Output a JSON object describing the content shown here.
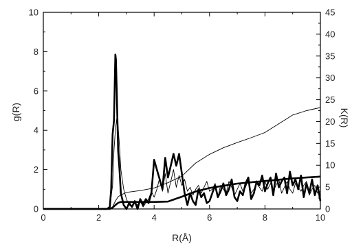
{
  "chart_data": {
    "type": "line",
    "title": "",
    "xlabel": "R(Å)",
    "ylabel": "g(R)",
    "y2label": "K(R)",
    "xlim": [
      0,
      10
    ],
    "ylim": [
      0,
      10
    ],
    "y2lim": [
      0,
      45
    ],
    "grid": false,
    "legend": "none",
    "x_ticks": [
      0,
      2,
      4,
      6,
      8,
      10
    ],
    "y_ticks": [
      0,
      2,
      4,
      6,
      8,
      10
    ],
    "y2_ticks": [
      0,
      5,
      10,
      15,
      20,
      25,
      30,
      35,
      40,
      45
    ],
    "series": [
      {
        "axis": "left",
        "style": "thick",
        "x": [
          0,
          2.3,
          2.4,
          2.45,
          2.5,
          2.55,
          2.6,
          2.62,
          2.65,
          2.7,
          2.75,
          2.8,
          2.9,
          3.0,
          3.1,
          3.2,
          3.3,
          3.4,
          3.5,
          3.6,
          3.7,
          3.8,
          3.9,
          4.0,
          4.1,
          4.2,
          4.3,
          4.4,
          4.5,
          4.6,
          4.7,
          4.8,
          4.9,
          5.0,
          5.1,
          5.2,
          5.3,
          5.4,
          5.5,
          5.6,
          5.7,
          5.8,
          5.9,
          6.0,
          6.1,
          6.2,
          6.3,
          6.4,
          6.5,
          6.6,
          6.7,
          6.8,
          6.9,
          7.0,
          7.1,
          7.2,
          7.3,
          7.4,
          7.5,
          7.6,
          7.7,
          7.8,
          7.9,
          8.0,
          8.1,
          8.2,
          8.3,
          8.4,
          8.5,
          8.6,
          8.7,
          8.8,
          8.9,
          9.0,
          9.1,
          9.2,
          9.3,
          9.4,
          9.5,
          9.6,
          9.7,
          9.8,
          9.9,
          10.0
        ],
        "y": [
          0,
          0,
          0.1,
          1.0,
          3.8,
          4.5,
          7.85,
          7.6,
          6.0,
          3.0,
          2.0,
          0.8,
          0.2,
          0,
          0.3,
          0.1,
          0.4,
          0,
          0.5,
          0.2,
          0.5,
          0.3,
          0.8,
          2.5,
          2.0,
          1.5,
          1.0,
          2.6,
          1.6,
          2.2,
          2.8,
          2.2,
          2.8,
          1.8,
          0.8,
          0.2,
          0.8,
          0.4,
          0.2,
          1.0,
          0.6,
          0.8,
          0.3,
          0.4,
          0.8,
          1.2,
          0.6,
          0.9,
          1.3,
          0.7,
          1.0,
          1.5,
          0.6,
          0.4,
          0.9,
          0.7,
          1.3,
          1.6,
          0.5,
          0.8,
          1.4,
          1.2,
          1.7,
          0.9,
          1.3,
          1.6,
          0.7,
          1.8,
          1.1,
          1.4,
          1.6,
          0.8,
          1.9,
          1.2,
          1.5,
          1.0,
          1.7,
          0.6,
          1.3,
          0.8,
          1.5,
          0.7,
          1.2,
          0.4
        ]
      },
      {
        "axis": "left",
        "style": "thin",
        "x": [
          0,
          2.3,
          2.4,
          2.5,
          2.55,
          2.6,
          2.65,
          2.7,
          2.75,
          2.8,
          2.9,
          3.0,
          3.1,
          3.2,
          3.3,
          3.4,
          3.5,
          3.6,
          3.7,
          3.8,
          3.9,
          4.0,
          4.1,
          4.2,
          4.3,
          4.4,
          4.5,
          4.6,
          4.7,
          4.8,
          4.9,
          5.0,
          5.1,
          5.2,
          5.3,
          5.4,
          5.5,
          5.6,
          5.7,
          5.8,
          5.9,
          6.0,
          6.1,
          6.2,
          6.3,
          6.4,
          6.5,
          6.6,
          6.7,
          6.8,
          6.9,
          7.0,
          7.1,
          7.2,
          7.3,
          7.4,
          7.5,
          7.6,
          7.7,
          7.8,
          7.9,
          8.0,
          8.1,
          8.2,
          8.3,
          8.4,
          8.5,
          8.6,
          8.7,
          8.8,
          8.9,
          9.0,
          9.1,
          9.2,
          9.3,
          9.4,
          9.5,
          9.6,
          9.7,
          9.8,
          9.9,
          10.0
        ],
        "y": [
          0,
          0,
          0.1,
          1.2,
          3.0,
          4.0,
          4.6,
          4.2,
          3.2,
          2.0,
          1.0,
          0.5,
          0.2,
          0.1,
          0.3,
          0.2,
          0.4,
          0.1,
          0.3,
          0.5,
          0.9,
          0.6,
          1.0,
          1.6,
          0.9,
          1.8,
          0.8,
          1.4,
          2.0,
          1.1,
          1.7,
          1.2,
          1.5,
          0.9,
          1.1,
          0.7,
          1.0,
          1.2,
          0.8,
          1.1,
          1.4,
          0.9,
          1.0,
          1.3,
          0.6,
          1.2,
          1.0,
          0.8,
          1.4,
          1.1,
          0.7,
          1.0,
          1.3,
          0.9,
          1.1,
          1.5,
          0.8,
          1.0,
          1.3,
          1.1,
          0.9,
          1.4,
          1.0,
          1.3,
          0.9,
          1.2,
          1.5,
          0.8,
          1.1,
          1.4,
          1.0,
          0.8,
          1.3,
          1.1,
          0.9,
          1.2,
          1.4,
          0.7,
          1.0,
          1.2,
          0.8,
          0.9
        ]
      },
      {
        "axis": "right",
        "style": "thick",
        "x": [
          0,
          2.4,
          2.5,
          2.6,
          2.7,
          2.8,
          3.0,
          3.5,
          4.0,
          4.5,
          5.0,
          5.5,
          6.0,
          6.5,
          7.0,
          7.5,
          8.0,
          8.5,
          9.0,
          9.5,
          10.0
        ],
        "y": [
          0,
          0,
          0.3,
          0.9,
          1.4,
          1.6,
          1.6,
          1.6,
          1.6,
          1.7,
          2.8,
          4.0,
          4.8,
          5.3,
          5.8,
          6.1,
          6.4,
          6.7,
          7.0,
          7.2,
          7.4
        ]
      },
      {
        "axis": "right",
        "style": "thin",
        "x": [
          0,
          2.4,
          2.5,
          2.6,
          2.7,
          2.8,
          3.0,
          3.5,
          4.0,
          4.5,
          5.0,
          5.5,
          6.0,
          6.5,
          7.0,
          7.5,
          8.0,
          8.5,
          9.0,
          9.5,
          10.0
        ],
        "y": [
          0,
          0,
          0.5,
          1.8,
          2.8,
          3.2,
          3.8,
          4.2,
          4.8,
          6.0,
          7.5,
          10.5,
          12.5,
          14.0,
          15.2,
          16.3,
          17.5,
          19.5,
          21.5,
          22.5,
          23.2
        ]
      }
    ]
  }
}
